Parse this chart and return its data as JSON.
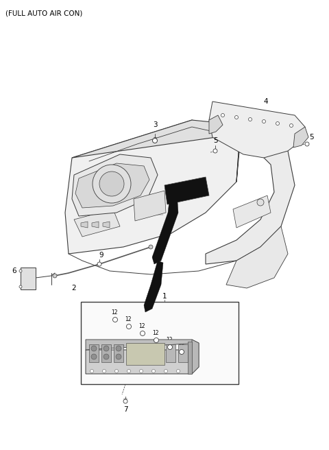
{
  "title": "(FULL AUTO AIR CON)",
  "bg": "#ffffff",
  "lc": "#3a3a3a",
  "black": "#000000",
  "fig_w": 4.8,
  "fig_h": 6.56,
  "dpi": 100,
  "label_fs": 7.0,
  "title_fs": 7.5
}
